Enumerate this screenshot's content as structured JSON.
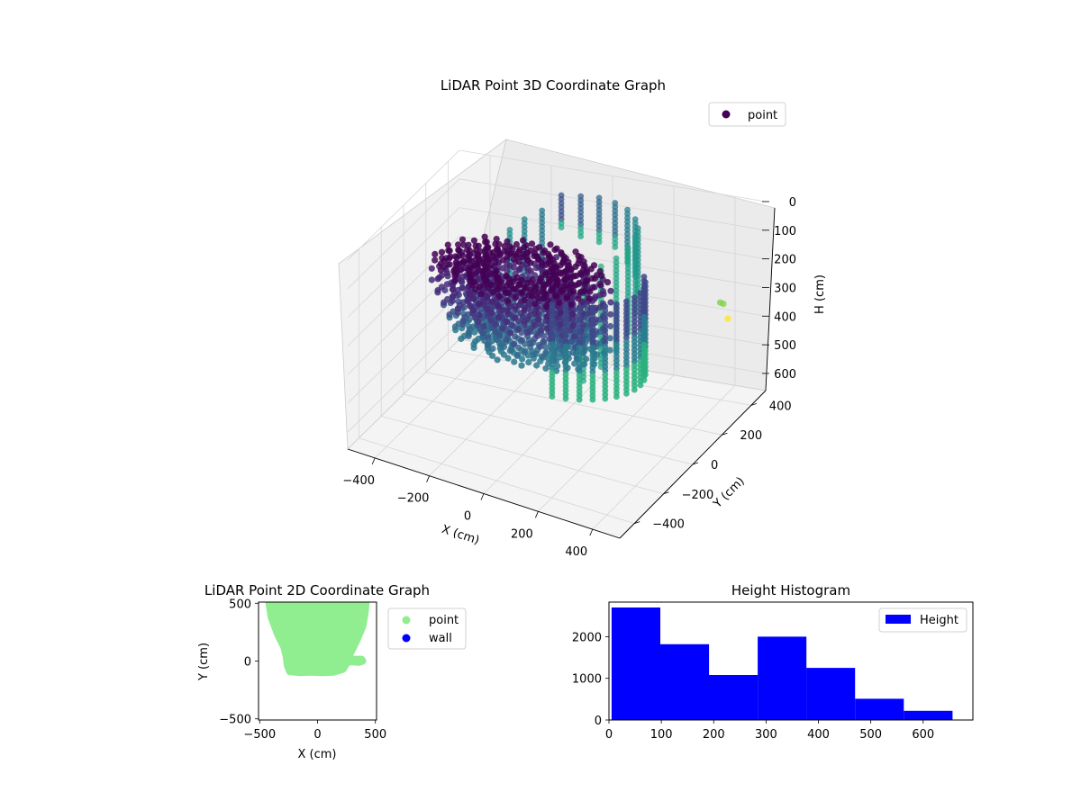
{
  "chart_data": [
    {
      "type": "scatter",
      "projection": "3d",
      "title": "LiDAR Point 3D Coordinate Graph",
      "xlabel": "X (cm)",
      "ylabel": "Y (cm)",
      "zlabel": "H (cm)",
      "xticks": [
        "−400",
        "−200",
        "0",
        "200",
        "400"
      ],
      "yticks": [
        "−400",
        "−200",
        "0",
        "200",
        "400"
      ],
      "zticks": [
        "0",
        "100",
        "200",
        "300",
        "400",
        "500",
        "600"
      ],
      "xlim": [
        -500,
        500
      ],
      "ylim": [
        -500,
        500
      ],
      "zlim": [
        0,
        660
      ],
      "z_inverted": true,
      "colormap": "viridis",
      "legend": {
        "entries": [
          "point"
        ],
        "placement": "top-right"
      },
      "grid": true,
      "series": [
        {
          "name": "point",
          "columns": [
            {
              "angle": 115,
              "zmin": 10,
              "zmax": 130,
              "color": "#3b528b"
            },
            {
              "angle": 100,
              "zmin": 10,
              "zmax": 150,
              "color": "#355f8d"
            },
            {
              "angle": 85,
              "zmin": 5,
              "zmax": 160,
              "color": "#31688e"
            },
            {
              "angle": 70,
              "zmin": 5,
              "zmax": 170,
              "color": "#2c728e"
            },
            {
              "angle": 55,
              "zmin": 5,
              "zmax": 190,
              "color": "#287d8e"
            },
            {
              "angle": 40,
              "zmin": 10,
              "zmax": 210,
              "color": "#24868e"
            },
            {
              "angle": 25,
              "zmin": 10,
              "zmax": 240,
              "color": "#21918c"
            },
            {
              "angle": 10,
              "zmin": 10,
              "zmax": 280,
              "color": "#1f9a8a"
            },
            {
              "angle": -5,
              "zmin": 20,
              "zmax": 320,
              "color": "#1fa188"
            },
            {
              "angle": -20,
              "zmin": 30,
              "zmax": 360,
              "color": "#22a884"
            },
            {
              "angle": -35,
              "zmin": 40,
              "zmax": 400,
              "color": "#2ab07f"
            },
            {
              "angle": -50,
              "zmin": 50,
              "zmax": 430,
              "color": "#35b779"
            },
            {
              "angle": 130,
              "zmin": 60,
              "zmax": 360,
              "color": "#2a788e"
            },
            {
              "angle": 145,
              "zmin": 80,
              "zmax": 380,
              "color": "#25838e"
            },
            {
              "angle": 160,
              "zmin": 100,
              "zmax": 400,
              "color": "#21908d"
            }
          ],
          "outliers": [
            {
              "x": 470,
              "y": 250,
              "z": 230,
              "color": "#7ad151"
            },
            {
              "x": 490,
              "y": 230,
              "z": 220,
              "color": "#86d549"
            },
            {
              "x": 520,
              "y": 200,
              "z": 250,
              "color": "#fde725"
            }
          ]
        }
      ]
    },
    {
      "type": "scatter",
      "title": "LiDAR Point 2D Coordinate Graph",
      "xlabel": "X (cm)",
      "ylabel": "Y (cm)",
      "xlim": [
        -510,
        510
      ],
      "ylim": [
        -510,
        510
      ],
      "xticks": [
        "−500",
        "0",
        "500"
      ],
      "yticks": [
        "500",
        "0",
        "−500"
      ],
      "legend": {
        "entries": [
          "point",
          "wall"
        ],
        "placement": "outside-right"
      },
      "series": [
        {
          "name": "point",
          "color": "#90ee90",
          "outline": [
            [
              -420,
              510
            ],
            [
              -400,
              380
            ],
            [
              -340,
              220
            ],
            [
              -290,
              120
            ],
            [
              -270,
              40
            ],
            [
              -260,
              -40
            ],
            [
              -240,
              -90
            ],
            [
              -150,
              -100
            ],
            [
              -60,
              -95
            ],
            [
              30,
              -100
            ],
            [
              140,
              -95
            ],
            [
              220,
              -70
            ],
            [
              250,
              -20
            ],
            [
              280,
              -5
            ],
            [
              360,
              -10
            ],
            [
              390,
              0
            ],
            [
              380,
              15
            ],
            [
              300,
              15
            ],
            [
              270,
              40
            ],
            [
              330,
              160
            ],
            [
              390,
              300
            ],
            [
              410,
              420
            ],
            [
              420,
              510
            ]
          ]
        },
        {
          "name": "wall",
          "color": "#0000ff",
          "points": []
        }
      ]
    },
    {
      "type": "bar",
      "title": "Height Histogram",
      "xlim": [
        0,
        695
      ],
      "ylim": [
        0,
        2830
      ],
      "xticks": [
        "0",
        "100",
        "200",
        "300",
        "400",
        "500",
        "600"
      ],
      "yticks": [
        "0",
        "1000",
        "2000"
      ],
      "legend": {
        "entries": [
          "Height"
        ],
        "placement": "top-right"
      },
      "series": [
        {
          "name": "Height",
          "color": "#0000ff",
          "bins": [
            {
              "x0": 5,
              "x1": 98,
              "count": 2700
            },
            {
              "x0": 98,
              "x1": 191,
              "count": 1820
            },
            {
              "x0": 191,
              "x1": 284,
              "count": 1080
            },
            {
              "x0": 284,
              "x1": 377,
              "count": 2000
            },
            {
              "x0": 377,
              "x1": 470,
              "count": 1250
            },
            {
              "x0": 470,
              "x1": 563,
              "count": 510
            },
            {
              "x0": 563,
              "x1": 656,
              "count": 220
            }
          ]
        }
      ]
    }
  ]
}
